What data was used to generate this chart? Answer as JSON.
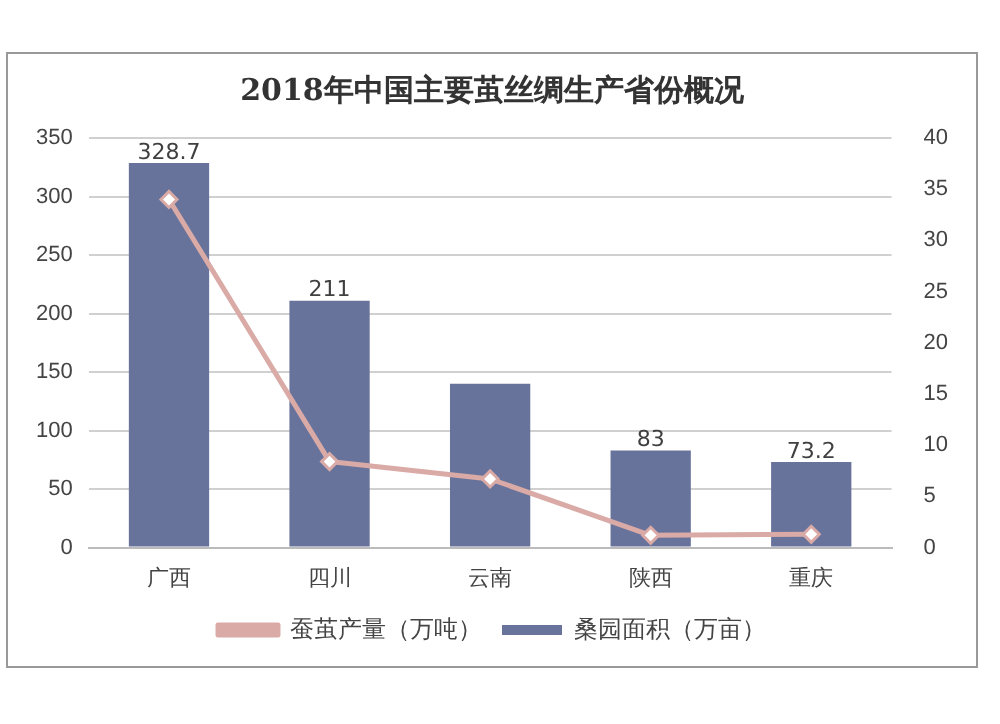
{
  "chart_data": {
    "type": "bar",
    "title": "2018年中国主要茧丝绸生产省份概况",
    "categories": [
      "广西",
      "四川",
      "云南",
      "陕西",
      "重庆"
    ],
    "series": [
      {
        "name": "桑园面积（万亩）",
        "color": "#68739b",
        "values": [
          328.7,
          211,
          140,
          83,
          73.2
        ],
        "value_labels": [
          "328.7",
          "211",
          null,
          "83",
          "73.2"
        ]
      },
      {
        "name": "蚕茧产量（万吨）",
        "type": "line",
        "axis": "y2",
        "color": "#d9aaa6",
        "values": [
          34,
          8.4,
          6.7,
          1.2,
          1.3
        ],
        "marker": "diamond"
      }
    ],
    "ylim": [
      0,
      350
    ],
    "yticks": [
      0,
      50,
      100,
      150,
      200,
      250,
      300,
      350
    ],
    "y2lim": [
      0,
      40
    ],
    "y2ticks": [
      0,
      5,
      10,
      15,
      20,
      25,
      30,
      35,
      40
    ],
    "grid": "y",
    "legend": "bottom"
  }
}
